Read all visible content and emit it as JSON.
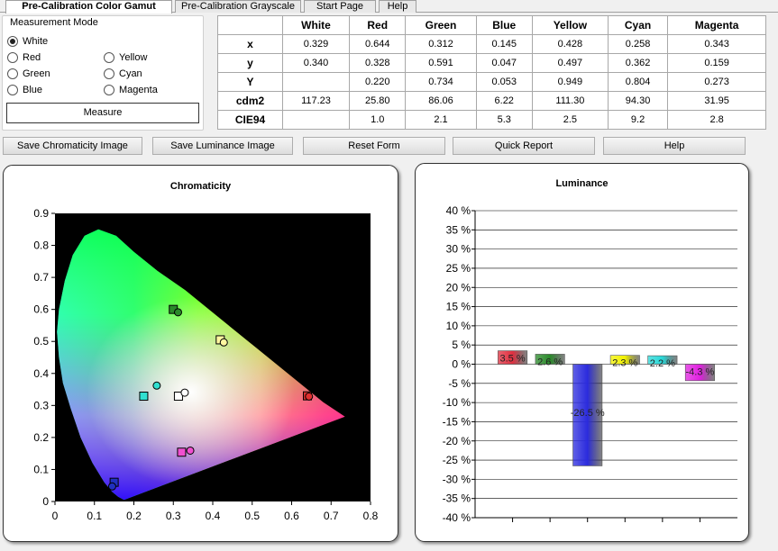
{
  "tabs": [
    {
      "label": "Pre-Calibration Color Gamut",
      "active": true
    },
    {
      "label": "Pre-Calibration Grayscale",
      "active": false
    },
    {
      "label": "Start Page",
      "active": false
    },
    {
      "label": "Help",
      "active": false
    }
  ],
  "measurement_mode": {
    "title": "Measurement Mode",
    "options": [
      {
        "label": "White",
        "checked": true
      },
      {
        "label": "Yellow",
        "checked": false
      },
      {
        "label": "Red",
        "checked": false
      },
      {
        "label": "Cyan",
        "checked": false
      },
      {
        "label": "Green",
        "checked": false
      },
      {
        "label": "Magenta",
        "checked": false
      },
      {
        "label": "Blue",
        "checked": false
      }
    ],
    "measure_button": "Measure"
  },
  "table": {
    "columns": [
      "White",
      "Red",
      "Green",
      "Blue",
      "Yellow",
      "Cyan",
      "Magenta"
    ],
    "rows": [
      {
        "label": "x",
        "values": [
          "0.329",
          "0.644",
          "0.312",
          "0.145",
          "0.428",
          "0.258",
          "0.343"
        ]
      },
      {
        "label": "y",
        "values": [
          "0.340",
          "0.328",
          "0.591",
          "0.047",
          "0.497",
          "0.362",
          "0.159"
        ]
      },
      {
        "label": "Y",
        "values": [
          "",
          "0.220",
          "0.734",
          "0.053",
          "0.949",
          "0.804",
          "0.273"
        ]
      },
      {
        "label": "cdm2",
        "values": [
          "117.23",
          "25.80",
          "86.06",
          "6.22",
          "111.30",
          "94.30",
          "31.95"
        ]
      },
      {
        "label": "CIE94",
        "values": [
          "",
          "1.0",
          "2.1",
          "5.3",
          "2.5",
          "9.2",
          "2.8"
        ]
      }
    ]
  },
  "buttons": [
    "Save Chromaticity Image",
    "Save Luminance Image",
    "Reset Form",
    "Quick Report",
    "Help"
  ],
  "colors": {
    "red": "#e03040",
    "green": "#2a8a2a",
    "blue": "#2b2bdd",
    "yellow": "#f2f200",
    "cyan": "#28d8d8",
    "magenta": "#e020e0",
    "grid": "#000000"
  },
  "chart_data": [
    {
      "type": "scatter",
      "title": "Chromaticity",
      "xlabel": "",
      "ylabel": "",
      "xlim": [
        0,
        0.8
      ],
      "ylim": [
        0,
        0.9
      ],
      "xticks": [
        "0",
        "0.1",
        "0.2",
        "0.3",
        "0.4",
        "0.5",
        "0.6",
        "0.7",
        "0.8"
      ],
      "yticks": [
        "0",
        "0.1",
        "0.2",
        "0.3",
        "0.4",
        "0.5",
        "0.6",
        "0.7",
        "0.8",
        "0.9"
      ],
      "grid": false,
      "targets": [
        {
          "color": "White",
          "x": 0.313,
          "y": 0.329
        },
        {
          "color": "Red",
          "x": 0.64,
          "y": 0.33
        },
        {
          "color": "Green",
          "x": 0.3,
          "y": 0.6
        },
        {
          "color": "Blue",
          "x": 0.15,
          "y": 0.06
        },
        {
          "color": "Yellow",
          "x": 0.419,
          "y": 0.505
        },
        {
          "color": "Cyan",
          "x": 0.225,
          "y": 0.329
        },
        {
          "color": "Magenta",
          "x": 0.321,
          "y": 0.154
        }
      ],
      "measured": [
        {
          "color": "White",
          "x": 0.329,
          "y": 0.34
        },
        {
          "color": "Red",
          "x": 0.644,
          "y": 0.328
        },
        {
          "color": "Green",
          "x": 0.312,
          "y": 0.591
        },
        {
          "color": "Blue",
          "x": 0.145,
          "y": 0.047
        },
        {
          "color": "Yellow",
          "x": 0.428,
          "y": 0.497
        },
        {
          "color": "Cyan",
          "x": 0.258,
          "y": 0.362
        },
        {
          "color": "Magenta",
          "x": 0.343,
          "y": 0.159
        }
      ]
    },
    {
      "type": "bar",
      "title": "Luminance",
      "categories": [
        "Red",
        "Green",
        "Blue",
        "Yellow",
        "Cyan",
        "Magenta"
      ],
      "values": [
        3.5,
        2.6,
        -26.5,
        2.3,
        2.2,
        -4.3
      ],
      "data_labels": [
        "3.5 %",
        "2.6 %",
        "-26.5 %",
        "2.3 %",
        "2.2 %",
        "-4.3 %"
      ],
      "ylim": [
        -40,
        40
      ],
      "yticks": [
        "40 %",
        "35 %",
        "30 %",
        "25 %",
        "20 %",
        "15 %",
        "10 %",
        "5 %",
        "0 %",
        "-5 %",
        "-10 %",
        "-15 %",
        "-20 %",
        "-25 %",
        "-30 %",
        "-35 %",
        "-40 %"
      ],
      "grid": true
    }
  ]
}
